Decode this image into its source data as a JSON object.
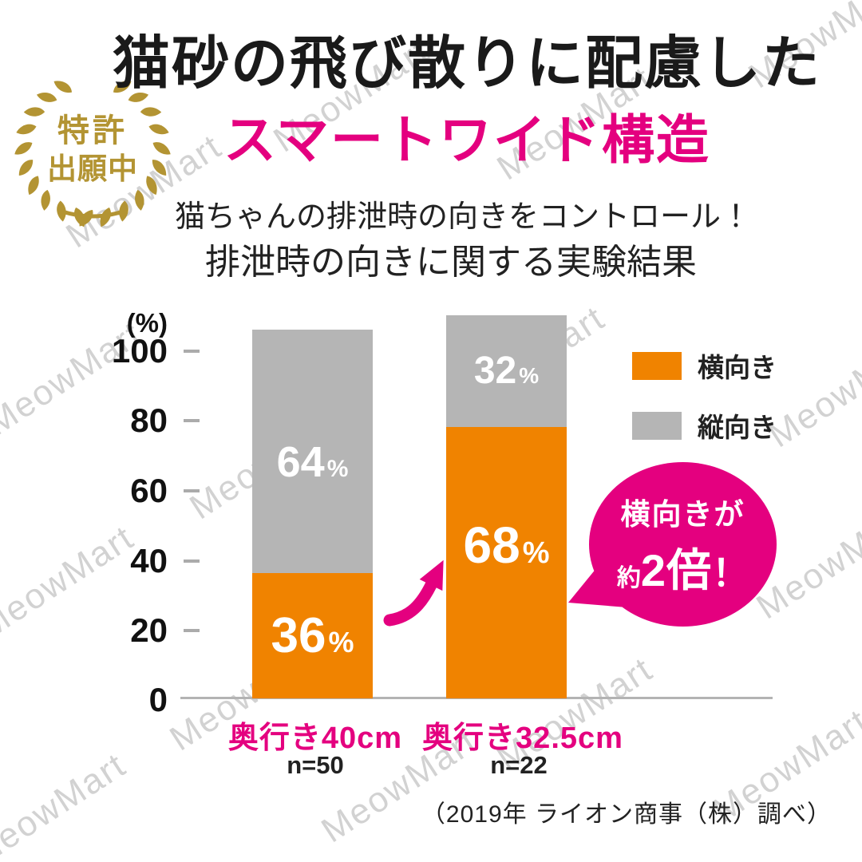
{
  "page": {
    "background": "#FFFFFF"
  },
  "watermark": {
    "text": "MeowMart"
  },
  "badge": {
    "line1": "特許",
    "line2": "出願中",
    "color": "#B39433"
  },
  "header": {
    "title": "猫砂の飛び散りに配慮した",
    "title_color": "#1A1A1A",
    "subtitle": "スマートワイド構造",
    "subtitle_color": "#E4007F",
    "lead1": "猫ちゃんの排泄時の向きをコントロール！",
    "lead2": "排泄時の向きに関する実験結果"
  },
  "chart_data": {
    "type": "bar",
    "stacked": true,
    "title": "排泄時の向きに関する実験結果",
    "unit_label": "(%)",
    "ylabel": "(%)",
    "ylim": [
      0,
      100
    ],
    "y_ticks": [
      "100",
      "80",
      "60",
      "40",
      "20",
      "0"
    ],
    "grid": false,
    "legend_position": "top-right",
    "categories": [
      "奥行き40cm",
      "奥行き32.5cm"
    ],
    "category_color": "#E4007F",
    "sample_sizes": [
      "n=50",
      "n=22"
    ],
    "percent_sign": "%",
    "series": [
      {
        "name": "横向き",
        "color": "#F08300",
        "values": [
          36,
          68
        ]
      },
      {
        "name": "縦向き",
        "color": "#B5B5B5",
        "values": [
          64,
          32
        ]
      }
    ]
  },
  "annotation": {
    "bubble_line1": "横向きが",
    "bubble_prefix": "約",
    "bubble_big": "2倍",
    "bubble_suffix": "！",
    "color": "#E4007F"
  },
  "footer": {
    "source": "（2019年 ライオン商事（株）調べ）"
  }
}
